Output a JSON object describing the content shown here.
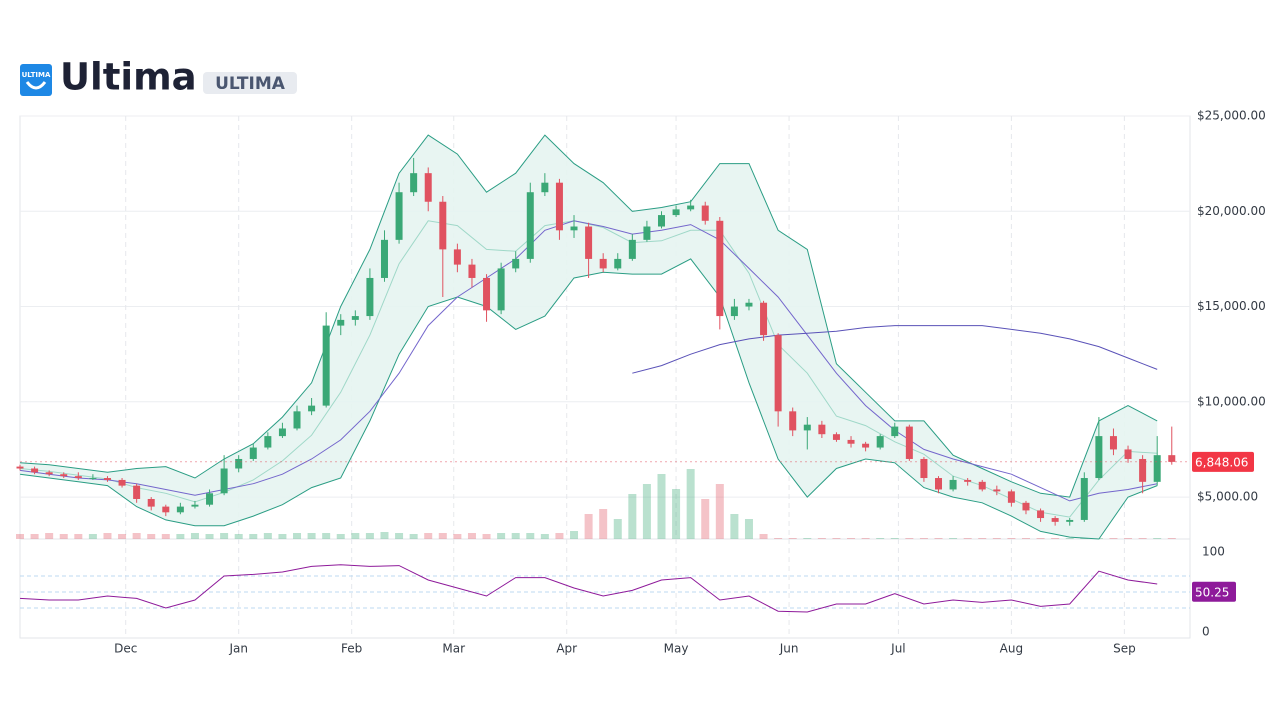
{
  "header": {
    "title": "Ultima",
    "ticker": "ULTIMA",
    "icon_text": "ULTIMA"
  },
  "chart_data": {
    "type": "candlestick",
    "x": [
      0,
      4,
      8,
      12,
      16,
      20,
      24,
      28,
      32,
      36,
      40,
      44,
      48,
      52,
      56,
      60,
      64,
      68,
      72,
      76,
      80,
      84,
      88,
      92,
      96,
      100,
      104,
      108,
      112,
      116,
      120,
      124,
      128,
      132,
      136,
      140,
      144,
      148,
      152,
      156,
      160,
      164,
      168,
      172,
      176,
      180,
      184,
      188,
      192,
      196,
      200,
      204,
      208,
      212,
      216,
      220,
      224,
      228,
      232,
      236,
      240,
      244,
      248,
      252,
      256,
      260,
      264,
      268,
      272,
      276,
      280,
      284,
      288,
      292,
      296,
      300,
      304,
      308,
      312,
      316
    ],
    "open": [
      6600,
      6500,
      6300,
      6200,
      6100,
      6000,
      6000,
      5900,
      5600,
      4900,
      4500,
      4200,
      4500,
      4600,
      5200,
      6500,
      7000,
      7600,
      8200,
      8600,
      9500,
      9800,
      14000,
      14300,
      14500,
      16500,
      18500,
      21000,
      22000,
      20500,
      18000,
      17200,
      16500,
      14800,
      17000,
      17500,
      21000,
      21500,
      19000,
      19200,
      17500,
      17000,
      17500,
      18500,
      19200,
      19800,
      20100,
      20300,
      19500,
      14500,
      15000,
      15200,
      13500,
      9500,
      8500,
      8800,
      8300,
      8000,
      7800,
      7600,
      8200,
      8700,
      7000,
      6000,
      5400,
      5900,
      5800,
      5400,
      5300,
      4700,
      4300,
      3900,
      3700,
      3800,
      6000,
      8200,
      7500,
      7000,
      5800,
      7200
    ],
    "high": [
      6700,
      6600,
      6400,
      6300,
      6300,
      6200,
      6100,
      6000,
      5700,
      5000,
      4600,
      4700,
      4800,
      5400,
      7200,
      7200,
      7800,
      8400,
      8900,
      9800,
      10200,
      14700,
      14600,
      14800,
      17000,
      19000,
      21500,
      22800,
      22300,
      20800,
      18300,
      17500,
      16700,
      17300,
      17900,
      21500,
      22000,
      21700,
      19800,
      19400,
      17800,
      17800,
      18800,
      19500,
      20000,
      20300,
      20600,
      20500,
      19700,
      15400,
      15400,
      15300,
      13600,
      9700,
      9200,
      9000,
      8400,
      8200,
      7900,
      8300,
      8900,
      8800,
      7100,
      6100,
      6100,
      6000,
      5900,
      5600,
      5400,
      4800,
      4400,
      4000,
      3900,
      6300,
      9200,
      8600,
      7700,
      7200,
      8200,
      8700
    ],
    "low": [
      6400,
      6200,
      6100,
      6000,
      5900,
      5900,
      5800,
      5500,
      4700,
      4300,
      4000,
      4100,
      4400,
      4500,
      5100,
      6300,
      6900,
      7500,
      8100,
      8500,
      9300,
      9700,
      13500,
      14000,
      14300,
      16300,
      18300,
      20800,
      20000,
      15500,
      16800,
      16000,
      14200,
      14600,
      16800,
      17300,
      20800,
      18500,
      18600,
      16500,
      16800,
      16900,
      17400,
      18400,
      19100,
      19700,
      20000,
      19300,
      13800,
      14300,
      14800,
      13200,
      8700,
      8200,
      7500,
      8100,
      7900,
      7600,
      7400,
      7500,
      8100,
      6900,
      5800,
      5200,
      5300,
      5600,
      5300,
      5100,
      4500,
      4100,
      3700,
      3500,
      3500,
      3700,
      5900,
      7200,
      6800,
      5200,
      5600,
      6700
    ],
    "close": [
      6500,
      6300,
      6200,
      6100,
      6000,
      6000,
      5900,
      5600,
      4900,
      4500,
      4200,
      4500,
      4600,
      5200,
      6500,
      7000,
      7600,
      8200,
      8600,
      9500,
      9800,
      14000,
      14300,
      14500,
      16500,
      18500,
      21000,
      22000,
      20500,
      18000,
      17200,
      16500,
      14800,
      17000,
      17500,
      21000,
      21500,
      19000,
      19200,
      17500,
      17000,
      17500,
      18500,
      19200,
      19800,
      20100,
      20300,
      19500,
      14500,
      15000,
      15200,
      13500,
      9500,
      8500,
      8800,
      8300,
      8000,
      7800,
      7600,
      8200,
      8700,
      7000,
      6000,
      5400,
      5900,
      5800,
      5400,
      5300,
      4700,
      4300,
      3900,
      3700,
      3800,
      6000,
      8200,
      7500,
      7000,
      5800,
      7200,
      6848.06
    ],
    "volume": [
      5,
      5,
      6,
      5,
      5,
      5,
      6,
      5,
      6,
      5,
      5,
      5,
      6,
      5,
      6,
      5,
      5,
      6,
      5,
      6,
      6,
      6,
      5,
      6,
      6,
      7,
      6,
      5,
      6,
      6,
      5,
      6,
      5,
      6,
      6,
      6,
      5,
      6,
      8,
      25,
      30,
      20,
      45,
      55,
      65,
      50,
      70,
      40,
      55,
      25,
      20,
      5,
      1,
      1,
      1,
      1,
      1,
      1,
      1,
      1,
      1,
      1,
      1,
      1,
      1,
      1,
      1,
      1,
      1,
      1,
      1,
      1,
      1,
      1,
      1,
      1,
      1,
      1,
      1,
      1
    ],
    "volume_lim": [
      0,
      100
    ],
    "up_color": "#3aa876",
    "down_color": "#e05260",
    "xlim": [
      0,
      321
    ],
    "xticks": [
      {
        "value": 29,
        "label": "Dec"
      },
      {
        "value": 60,
        "label": "Jan"
      },
      {
        "value": 91,
        "label": "Feb"
      },
      {
        "value": 119,
        "label": "Mar"
      },
      {
        "value": 150,
        "label": "Apr"
      },
      {
        "value": 180,
        "label": "May"
      },
      {
        "value": 211,
        "label": "Jun"
      },
      {
        "value": 241,
        "label": "Jul"
      },
      {
        "value": 272,
        "label": "Aug"
      },
      {
        "value": 303,
        "label": "Sep"
      }
    ],
    "ylim": [
      2800,
      25000
    ],
    "yticks": [
      {
        "value": 5000,
        "label": "$5,000.00"
      },
      {
        "value": 10000,
        "label": "$10,000.00"
      },
      {
        "value": 15000,
        "label": "$15,000.00"
      },
      {
        "value": 20000,
        "label": "$20,000.00"
      },
      {
        "value": 25000,
        "label": "$25,000.00"
      }
    ],
    "grid": true,
    "last_price": {
      "value": 6848.06,
      "label": "6,848.06"
    },
    "line_x": [
      0,
      8,
      16,
      24,
      32,
      40,
      48,
      56,
      64,
      72,
      80,
      88,
      96,
      104,
      112,
      120,
      128,
      136,
      144,
      152,
      160,
      168,
      176,
      184,
      192,
      200,
      208,
      216,
      224,
      232,
      240,
      248,
      256,
      264,
      272,
      280,
      288,
      296,
      304,
      312
    ],
    "band": {
      "color": "#2a9d84",
      "fill": "#e6f4f1",
      "upper": [
        6800,
        6700,
        6500,
        6300,
        6500,
        6600,
        6000,
        7000,
        7800,
        9200,
        11000,
        15000,
        18000,
        22000,
        24000,
        23000,
        21000,
        22000,
        24000,
        22500,
        21500,
        20000,
        20200,
        20500,
        22500,
        22500,
        19000,
        18000,
        12000,
        10500,
        9000,
        9000,
        7200,
        6500,
        5800,
        5200,
        5000,
        9000,
        9800,
        9000
      ],
      "middle": [
        6500,
        6350,
        6150,
        5950,
        5500,
        5200,
        4750,
        5250,
        5900,
        6900,
        8250,
        10500,
        13500,
        17250,
        19500,
        19250,
        18000,
        17900,
        19250,
        19500,
        19150,
        18350,
        18450,
        19000,
        19000,
        16750,
        13000,
        11500,
        9250,
        8750,
        7900,
        7250,
        6100,
        5600,
        4900,
        4200,
        3950,
        5900,
        7400,
        7300
      ],
      "lower": [
        6200,
        6000,
        5800,
        5600,
        4500,
        3800,
        3500,
        3500,
        4000,
        4600,
        5500,
        6000,
        9000,
        12500,
        15000,
        15500,
        15000,
        13800,
        14500,
        16500,
        16800,
        16700,
        16700,
        17500,
        15500,
        11000,
        7000,
        5000,
        6500,
        7000,
        6800,
        5500,
        5000,
        4700,
        4000,
        3200,
        2900,
        2800,
        5000,
        5600
      ],
      "middle_color": "#9fd8c8"
    },
    "overlays": [
      {
        "color": "#7466cc",
        "values": [
          6400,
          6200,
          6000,
          5900,
          5700,
          5400,
          5100,
          5400,
          5700,
          6200,
          7000,
          8000,
          9500,
          11500,
          14000,
          15500,
          16500,
          17500,
          19000,
          19500,
          19200,
          18800,
          19000,
          19300,
          18500,
          17000,
          15500,
          13500,
          11500,
          9800,
          8500,
          7500,
          7000,
          6600,
          6200,
          5500,
          4800,
          5200,
          5400,
          5700
        ]
      },
      {
        "color": "#5a52b8",
        "values": [
          null,
          null,
          null,
          null,
          null,
          null,
          null,
          null,
          null,
          null,
          null,
          null,
          null,
          null,
          null,
          null,
          null,
          null,
          null,
          null,
          null,
          11500,
          11900,
          12500,
          13000,
          13300,
          13500,
          13600,
          13700,
          13900,
          14000,
          14000,
          14000,
          14000,
          13800,
          13600,
          13300,
          12900,
          12300,
          11700
        ]
      }
    ],
    "rsi": {
      "color": "#8e1a9a",
      "values": [
        42,
        40,
        40,
        45,
        42,
        30,
        40,
        70,
        72,
        75,
        82,
        84,
        82,
        83,
        65,
        55,
        45,
        68,
        68,
        55,
        45,
        52,
        65,
        68,
        40,
        45,
        26,
        25,
        35,
        35,
        48,
        35,
        40,
        37,
        40,
        32,
        35,
        76,
        65,
        60
      ],
      "ylim": [
        0,
        100
      ],
      "yticks": [
        0,
        100
      ],
      "bands": [
        30,
        50,
        70
      ],
      "last": {
        "value": 50.25,
        "label": "50.25"
      }
    }
  }
}
